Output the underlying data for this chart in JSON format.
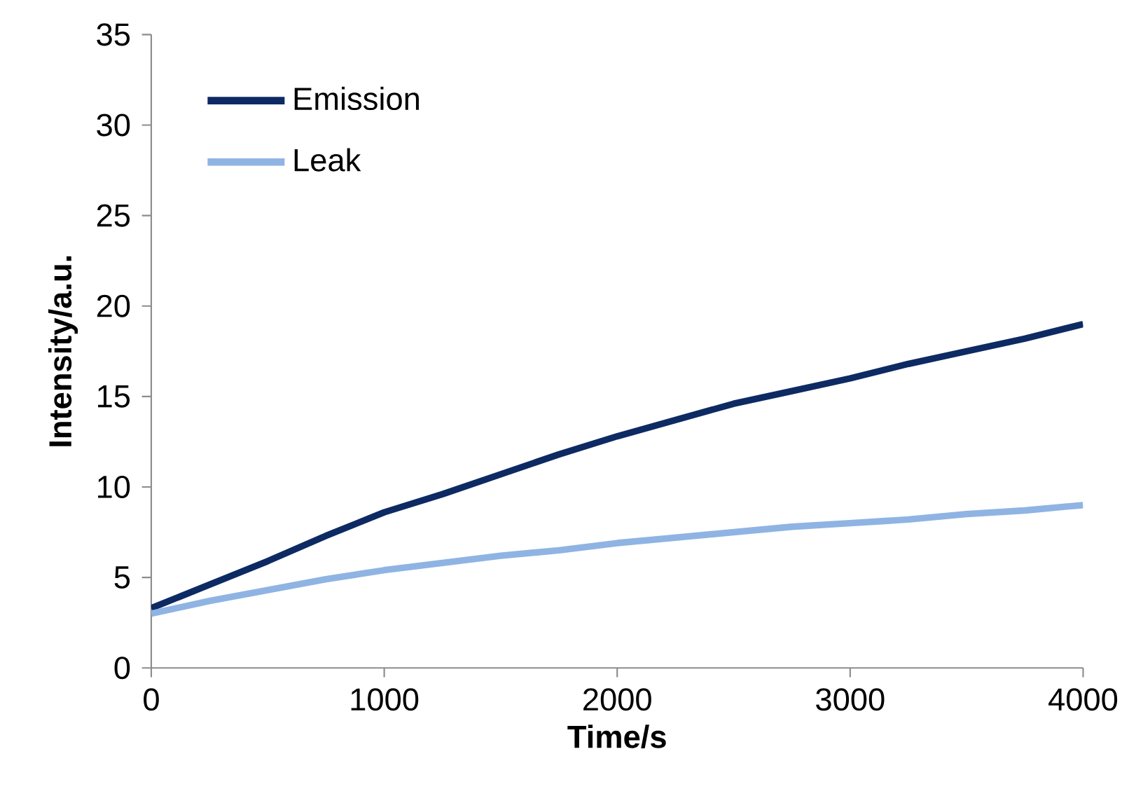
{
  "chart_data": {
    "type": "line",
    "xlabel": "Time/s",
    "ylabel": "Intensity/a.u.",
    "x": [
      0,
      250,
      500,
      750,
      1000,
      1250,
      1500,
      1750,
      2000,
      2250,
      2500,
      2750,
      3000,
      3250,
      3500,
      3750,
      4000
    ],
    "series": [
      {
        "name": "Emission",
        "color": "#0d2a63",
        "values": [
          3.3,
          4.6,
          5.9,
          7.3,
          8.6,
          9.6,
          10.7,
          11.8,
          12.8,
          13.7,
          14.6,
          15.3,
          16.0,
          16.8,
          17.5,
          18.2,
          19.0
        ]
      },
      {
        "name": "Leak",
        "color": "#8fb4e3",
        "values": [
          3.0,
          3.7,
          4.3,
          4.9,
          5.4,
          5.8,
          6.2,
          6.5,
          6.9,
          7.2,
          7.5,
          7.8,
          8.0,
          8.2,
          8.5,
          8.7,
          9.0
        ]
      }
    ],
    "xlim": [
      0,
      4000
    ],
    "ylim": [
      0,
      35
    ],
    "xticks": [
      0,
      1000,
      2000,
      3000,
      4000
    ],
    "yticks": [
      0,
      5,
      10,
      15,
      20,
      25,
      30,
      35
    ],
    "grid": false,
    "legend": "top left",
    "marker": "none",
    "line_style": "solid"
  }
}
